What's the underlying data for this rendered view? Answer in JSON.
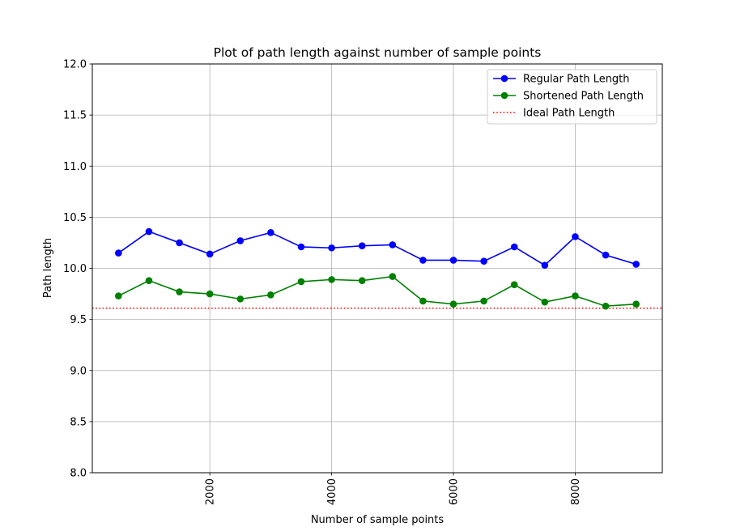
{
  "chart_data": {
    "type": "line",
    "title": "Plot of path length against number of sample points",
    "xlabel": "Number of sample points",
    "ylabel": "Path length",
    "xlim": [
      70,
      9430
    ],
    "ylim": [
      8.0,
      12.0
    ],
    "xticks": [
      2000,
      4000,
      6000,
      8000
    ],
    "xtick_rotation": 90,
    "yticks": [
      8.0,
      8.5,
      9.0,
      9.5,
      10.0,
      10.5,
      11.0,
      11.5,
      12.0
    ],
    "grid": true,
    "legend_position": "top-right",
    "x": [
      500,
      1000,
      1500,
      2000,
      2500,
      3000,
      3500,
      4000,
      4500,
      5000,
      5500,
      6000,
      6500,
      7000,
      7500,
      8000,
      8500,
      9000
    ],
    "series": [
      {
        "name": "Regular Path Length",
        "color": "#0000ff",
        "style": "solid",
        "marker": "circle",
        "values": [
          10.15,
          10.36,
          10.25,
          10.14,
          10.27,
          10.35,
          10.21,
          10.2,
          10.22,
          10.23,
          10.08,
          10.08,
          10.07,
          10.21,
          10.03,
          10.31,
          10.13,
          10.04
        ]
      },
      {
        "name": "Shortened Path Length",
        "color": "#008000",
        "style": "solid",
        "marker": "circle",
        "values": [
          9.73,
          9.88,
          9.77,
          9.75,
          9.7,
          9.74,
          9.87,
          9.89,
          9.88,
          9.92,
          9.68,
          9.65,
          9.68,
          9.84,
          9.67,
          9.73,
          9.63,
          9.65
        ]
      },
      {
        "name": "Ideal Path Length",
        "color": "#ff0000",
        "style": "dotted",
        "marker": "none",
        "constant": 9.61
      }
    ]
  }
}
